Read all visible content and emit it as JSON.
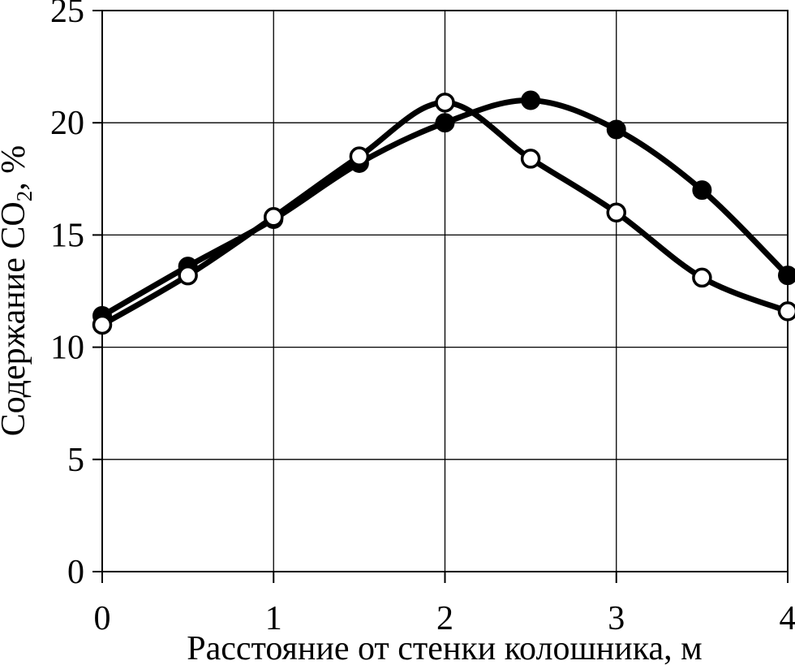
{
  "page": {
    "background_color": "#ffffff",
    "foreground_color": "#000000"
  },
  "chart_data": {
    "type": "line",
    "title": "",
    "xlabel": "Расстояние от стенки колошника, м",
    "ylabel": {
      "main": "Содержание СО",
      "sub": "2",
      "tail": ", %"
    },
    "x": [
      0,
      0.5,
      1,
      1.5,
      2,
      2.5,
      3,
      3.5,
      4
    ],
    "series": [
      {
        "name": "filled-circle-series",
        "marker": "filled-circle",
        "line_color": "#000000",
        "marker_fill": "#000000",
        "marker_stroke": "#000000",
        "values": [
          11.4,
          13.6,
          15.7,
          18.2,
          20.0,
          21.0,
          19.7,
          17.0,
          13.2
        ]
      },
      {
        "name": "open-circle-series",
        "marker": "open-circle",
        "line_color": "#000000",
        "marker_fill": "#ffffff",
        "marker_stroke": "#000000",
        "values": [
          11.0,
          13.2,
          15.8,
          18.5,
          20.9,
          18.4,
          16.0,
          13.1,
          11.6
        ]
      }
    ],
    "xlim": [
      0,
      4
    ],
    "ylim": [
      0,
      25
    ],
    "x_ticks": [
      0,
      1,
      2,
      3,
      4
    ],
    "y_ticks": [
      0,
      5,
      10,
      15,
      20,
      25
    ],
    "grid": true,
    "legend": "none",
    "smooth": true,
    "grid_color": "#000000",
    "frame_color": "#000000"
  }
}
